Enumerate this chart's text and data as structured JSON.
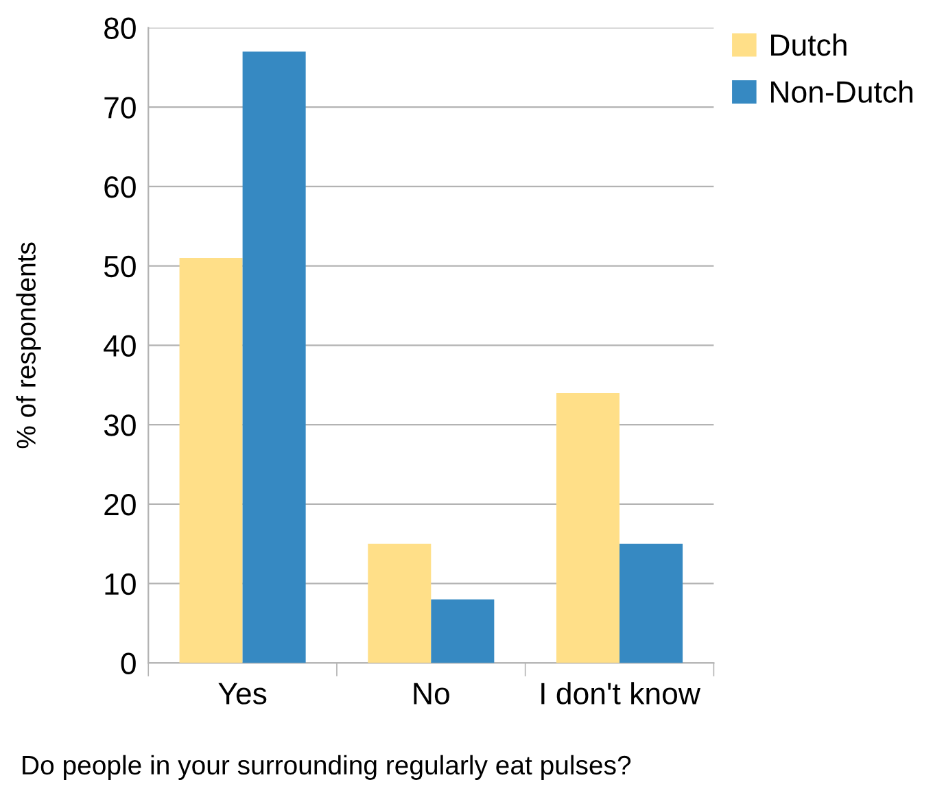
{
  "chart_data": {
    "type": "bar",
    "xlabel": "Do people in your surrounding regularly eat pulses?",
    "ylabel": "% of respondents",
    "categories": [
      "Yes",
      "No",
      "I don't know"
    ],
    "series": [
      {
        "name": "Dutch",
        "color": "#ffdf88",
        "values": [
          51,
          15,
          34
        ]
      },
      {
        "name": "Non-Dutch",
        "color": "#3689c2",
        "values": [
          77,
          8,
          15
        ]
      }
    ],
    "ylim": [
      0,
      80
    ],
    "yticks": [
      0,
      10,
      20,
      30,
      40,
      50,
      60,
      70,
      80
    ],
    "grid": "y",
    "legend": "top right"
  }
}
